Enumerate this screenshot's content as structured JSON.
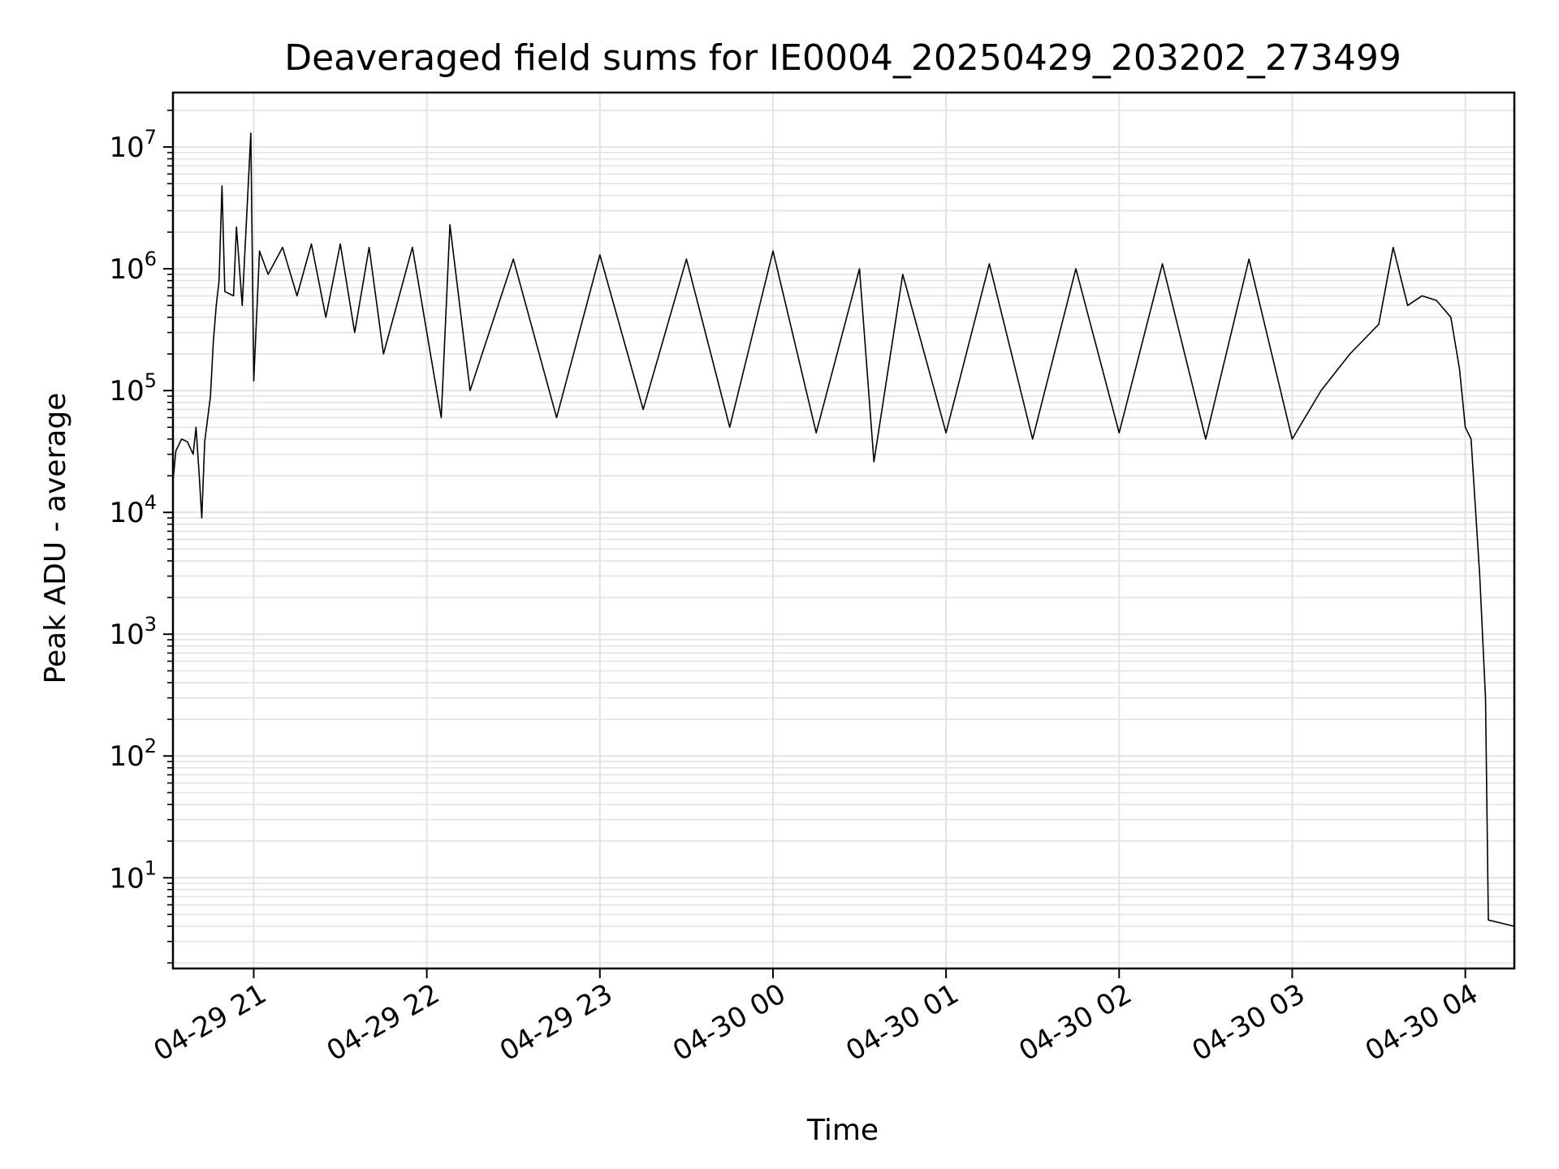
{
  "chart_data": {
    "type": "line",
    "title": "Deaveraged field sums for IE0004_20250429_203202_273499",
    "xlabel": "Time",
    "ylabel": "Peak ADU - average",
    "y_scale": "log",
    "grid": true,
    "line_color": "#000000",
    "grid_color": "#e3e3e3",
    "xlim": [
      "2025-04-29 20:32",
      "2025-04-30 04:17"
    ],
    "ylim": [
      1.8,
      28000000
    ],
    "x_ticks": [
      {
        "value": "2025-04-29 21:00",
        "label": "04-29 21"
      },
      {
        "value": "2025-04-29 22:00",
        "label": "04-29 22"
      },
      {
        "value": "2025-04-29 23:00",
        "label": "04-29 23"
      },
      {
        "value": "2025-04-30 00:00",
        "label": "04-30 00"
      },
      {
        "value": "2025-04-30 01:00",
        "label": "04-30 01"
      },
      {
        "value": "2025-04-30 02:00",
        "label": "04-30 02"
      },
      {
        "value": "2025-04-30 03:00",
        "label": "04-30 03"
      },
      {
        "value": "2025-04-30 04:00",
        "label": "04-30 04"
      }
    ],
    "y_ticks": [
      {
        "value": 10,
        "base": "10",
        "exp": "1"
      },
      {
        "value": 100,
        "base": "10",
        "exp": "2"
      },
      {
        "value": 1000,
        "base": "10",
        "exp": "3"
      },
      {
        "value": 10000,
        "base": "10",
        "exp": "4"
      },
      {
        "value": 100000,
        "base": "10",
        "exp": "5"
      },
      {
        "value": 1000000,
        "base": "10",
        "exp": "6"
      },
      {
        "value": 10000000,
        "base": "10",
        "exp": "7"
      }
    ],
    "series": [
      {
        "style": "line",
        "points": [
          [
            "2025-04-29 20:32",
            18000
          ],
          [
            "2025-04-29 20:33",
            32000
          ],
          [
            "2025-04-29 20:35",
            40000
          ],
          [
            "2025-04-29 20:37",
            38000
          ],
          [
            "2025-04-29 20:39",
            30000
          ],
          [
            "2025-04-29 20:40",
            50000
          ],
          [
            "2025-04-29 20:41",
            22000
          ],
          [
            "2025-04-29 20:42",
            9000
          ],
          [
            "2025-04-29 20:43",
            38000
          ],
          [
            "2025-04-29 20:45",
            90000
          ],
          [
            "2025-04-29 20:46",
            250000
          ],
          [
            "2025-04-29 20:47",
            500000
          ],
          [
            "2025-04-29 20:48",
            800000
          ],
          [
            "2025-04-29 20:49",
            4800000
          ],
          [
            "2025-04-29 20:50",
            650000
          ],
          [
            "2025-04-29 20:53",
            600000
          ],
          [
            "2025-04-29 20:54",
            2200000
          ],
          [
            "2025-04-29 20:56",
            500000
          ],
          [
            "2025-04-29 20:59",
            13000000
          ],
          [
            "2025-04-29 21:00",
            120000
          ],
          [
            "2025-04-29 21:02",
            1400000
          ],
          [
            "2025-04-29 21:05",
            900000
          ],
          [
            "2025-04-29 21:10",
            1500000
          ],
          [
            "2025-04-29 21:15",
            600000
          ],
          [
            "2025-04-29 21:20",
            1600000
          ],
          [
            "2025-04-29 21:25",
            400000
          ],
          [
            "2025-04-29 21:30",
            1600000
          ],
          [
            "2025-04-29 21:35",
            300000
          ],
          [
            "2025-04-29 21:40",
            1500000
          ],
          [
            "2025-04-29 21:45",
            200000
          ],
          [
            "2025-04-29 21:55",
            1500000
          ],
          [
            "2025-04-29 22:05",
            60000
          ],
          [
            "2025-04-29 22:08",
            2300000
          ],
          [
            "2025-04-29 22:15",
            100000
          ],
          [
            "2025-04-29 22:30",
            1200000
          ],
          [
            "2025-04-29 22:45",
            60000
          ],
          [
            "2025-04-29 23:00",
            1300000
          ],
          [
            "2025-04-29 23:15",
            70000
          ],
          [
            "2025-04-29 23:30",
            1200000
          ],
          [
            "2025-04-29 23:45",
            50000
          ],
          [
            "2025-04-30 00:00",
            1400000
          ],
          [
            "2025-04-30 00:15",
            45000
          ],
          [
            "2025-04-30 00:30",
            1000000
          ],
          [
            "2025-04-30 00:35",
            26000
          ],
          [
            "2025-04-30 00:45",
            900000
          ],
          [
            "2025-04-30 01:00",
            45000
          ],
          [
            "2025-04-30 01:15",
            1100000
          ],
          [
            "2025-04-30 01:30",
            40000
          ],
          [
            "2025-04-30 01:45",
            1000000
          ],
          [
            "2025-04-30 02:00",
            45000
          ],
          [
            "2025-04-30 02:15",
            1100000
          ],
          [
            "2025-04-30 02:30",
            40000
          ],
          [
            "2025-04-30 02:45",
            1200000
          ],
          [
            "2025-04-30 03:00",
            40000
          ],
          [
            "2025-04-30 03:10",
            100000
          ],
          [
            "2025-04-30 03:20",
            200000
          ],
          [
            "2025-04-30 03:30",
            350000
          ],
          [
            "2025-04-30 03:35",
            1500000
          ],
          [
            "2025-04-30 03:40",
            500000
          ],
          [
            "2025-04-30 03:45",
            600000
          ],
          [
            "2025-04-30 03:50",
            550000
          ],
          [
            "2025-04-30 03:55",
            400000
          ],
          [
            "2025-04-30 03:58",
            150000
          ],
          [
            "2025-04-30 04:00",
            50000
          ],
          [
            "2025-04-30 04:02",
            40000
          ],
          [
            "2025-04-30 04:05",
            3000
          ],
          [
            "2025-04-30 04:07",
            300
          ],
          [
            "2025-04-30 04:08",
            4.5
          ],
          [
            "2025-04-30 04:17",
            4
          ]
        ]
      }
    ]
  }
}
